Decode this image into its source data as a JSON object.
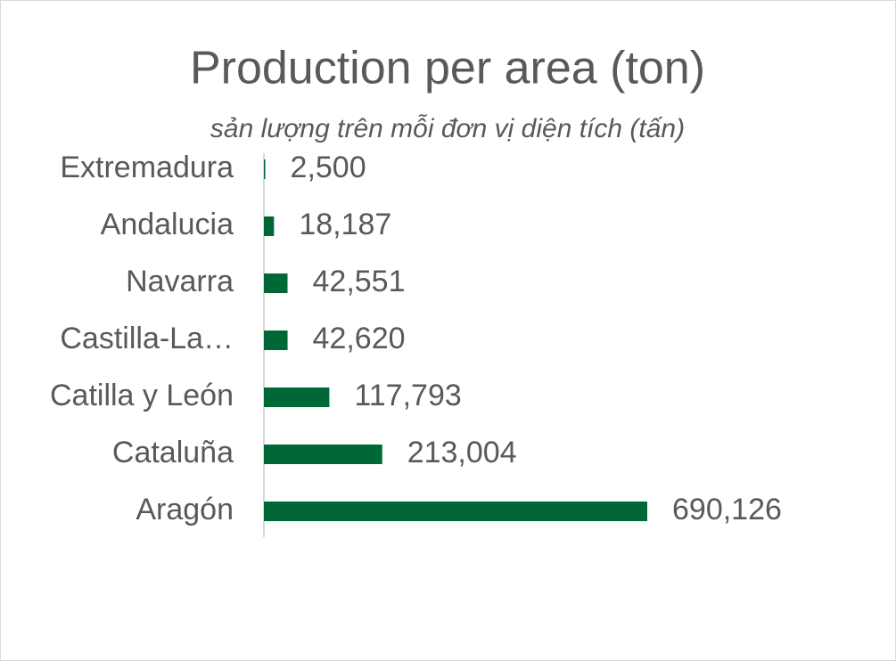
{
  "chart_data": {
    "type": "bar",
    "orientation": "horizontal",
    "title": "Production per area  (ton)",
    "subtitle": "sản lượng trên mỗi đơn vị diện tích  (tấn)",
    "categories": [
      "Extremadura",
      "Andalucia",
      "Navarra",
      "Castilla-La…",
      "Catilla y León",
      "Cataluña",
      "Aragón"
    ],
    "values": [
      2500,
      18187,
      42551,
      42620,
      117793,
      213004,
      690126
    ],
    "value_labels": [
      "2,500",
      "18,187",
      "42,551",
      "42,620",
      "117,793",
      "213,004",
      "690,126"
    ],
    "color": "#006837"
  }
}
